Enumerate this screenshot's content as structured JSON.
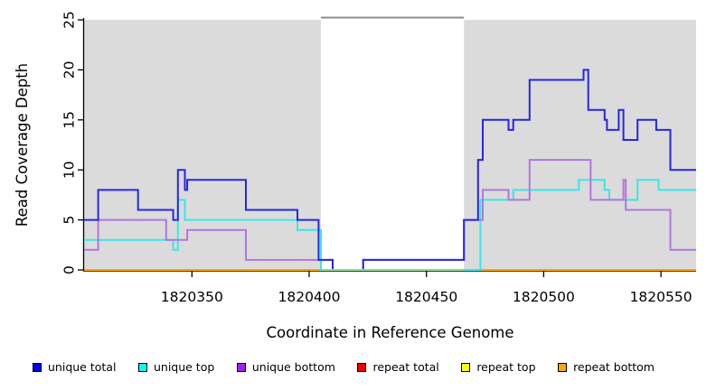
{
  "chart_data": {
    "type": "line",
    "title": "",
    "xlabel": "Coordinate in Reference Genome",
    "ylabel": "Read Coverage Depth",
    "xlim": [
      1820304,
      1820565
    ],
    "ylim": [
      0,
      25
    ],
    "grid": false,
    "legend_position": "bottom",
    "x_ticks": {
      "values": [
        1820350,
        1820400,
        1820450,
        1820500,
        1820550
      ],
      "labels": [
        "1820350",
        "1820400",
        "1820450",
        "1820500",
        "1820550"
      ]
    },
    "y_ticks": {
      "values": [
        0,
        5,
        10,
        15,
        20,
        25
      ],
      "labels": [
        "0",
        "5",
        "10",
        "15",
        "20",
        "25"
      ]
    },
    "shaded_regions": [
      {
        "x0": 1820304,
        "x1": 1820405,
        "color": "#DBDBDB"
      },
      {
        "x0": 1820466,
        "x1": 1820565,
        "color": "#DBDBDB"
      }
    ],
    "gap_region": {
      "x0": 1820405,
      "x1": 1820466,
      "top_border_color": "#8C8C8C"
    },
    "gap_baseline": {
      "x0": 1820405,
      "x1": 1820466,
      "y": 0,
      "color": "#8FD98F"
    },
    "series": [
      {
        "name": "repeat total",
        "color": "#EE0000",
        "steps": [
          [
            1820304,
            0
          ]
        ],
        "x_end": 1820565
      },
      {
        "name": "repeat top",
        "color": "#FFFF00",
        "steps": [
          [
            1820304,
            0
          ]
        ],
        "x_end": 1820565
      },
      {
        "name": "repeat bottom",
        "color": "#FFA500",
        "steps": [
          [
            1820304,
            0
          ]
        ],
        "x_end": 1820565
      },
      {
        "name": "unique top",
        "color": "#3BE6E6",
        "steps": [
          [
            1820304,
            3
          ],
          [
            1820342,
            2
          ],
          [
            1820344,
            7
          ],
          [
            1820347,
            5
          ],
          [
            1820395,
            4
          ],
          [
            1820405,
            0
          ],
          [
            1820473,
            7
          ],
          [
            1820487,
            8
          ],
          [
            1820515,
            9
          ],
          [
            1820526,
            8
          ],
          [
            1820528,
            7
          ],
          [
            1820540,
            9
          ],
          [
            1820549,
            8
          ]
        ],
        "x_end": 1820565
      },
      {
        "name": "unique bottom",
        "color": "#B176DC",
        "steps": [
          [
            1820304,
            2
          ],
          [
            1820310,
            5
          ],
          [
            1820339,
            3
          ],
          [
            1820348,
            4
          ],
          [
            1820373,
            1
          ],
          [
            1820410,
            0
          ],
          [
            1820423,
            1
          ],
          [
            1820466,
            5
          ],
          [
            1820474,
            8
          ],
          [
            1820485,
            7
          ],
          [
            1820494,
            11
          ],
          [
            1820520,
            7
          ],
          [
            1820534,
            9
          ],
          [
            1820535,
            6
          ],
          [
            1820554,
            2
          ]
        ],
        "x_end": 1820565
      },
      {
        "name": "unique total",
        "color": "#2626E6",
        "steps": [
          [
            1820304,
            5
          ],
          [
            1820310,
            8
          ],
          [
            1820327,
            6
          ],
          [
            1820342,
            5
          ],
          [
            1820344,
            10
          ],
          [
            1820347,
            8
          ],
          [
            1820348,
            9
          ],
          [
            1820373,
            6
          ],
          [
            1820395,
            5
          ],
          [
            1820404,
            1
          ],
          [
            1820410,
            0
          ],
          [
            1820423,
            1
          ],
          [
            1820466,
            5
          ],
          [
            1820472,
            11
          ],
          [
            1820474,
            15
          ],
          [
            1820485,
            14
          ],
          [
            1820487,
            15
          ],
          [
            1820494,
            19
          ],
          [
            1820517,
            20
          ],
          [
            1820519,
            16
          ],
          [
            1820526,
            15
          ],
          [
            1820527,
            14
          ],
          [
            1820532,
            16
          ],
          [
            1820534,
            13
          ],
          [
            1820540,
            15
          ],
          [
            1820548,
            14
          ],
          [
            1820554,
            10
          ]
        ],
        "x_end": 1820565
      }
    ]
  },
  "legend": [
    {
      "label": "unique total",
      "color": "#0000EE"
    },
    {
      "label": "unique top",
      "color": "#00FFFF"
    },
    {
      "label": "unique bottom",
      "color": "#A020F0"
    },
    {
      "label": "repeat total",
      "color": "#EE0000"
    },
    {
      "label": "repeat top",
      "color": "#FFFF00"
    },
    {
      "label": "repeat bottom",
      "color": "#FFA500"
    }
  ]
}
